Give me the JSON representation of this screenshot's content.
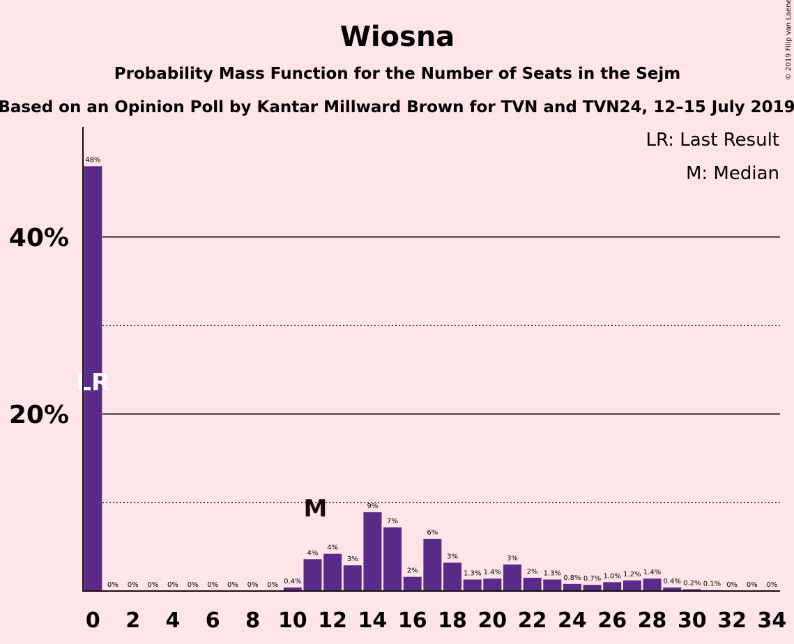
{
  "chart_data": {
    "type": "bar",
    "title": "Wiosna",
    "subtitle": "Probability Mass Function for the Number of Seats in the Sejm",
    "subtitle2": "Based on an Opinion Poll by Kantar Millward Brown for TVN and TVN24, 12–15 July 2019",
    "copyright": "© 2019 Filip van Laenen",
    "legend": [
      "LR: Last Result",
      "M: Median"
    ],
    "legend_placement": "top-right",
    "xlabel": "",
    "ylabel": "",
    "ylim": [
      0,
      52
    ],
    "yticks": [
      {
        "value": 20,
        "label": "20%"
      },
      {
        "value": 40,
        "label": "40%"
      }
    ],
    "gridlines": [
      {
        "value": 10,
        "style": "dotted"
      },
      {
        "value": 20,
        "style": "solid"
      },
      {
        "value": 30,
        "style": "dotted"
      },
      {
        "value": 40,
        "style": "solid"
      }
    ],
    "xticks": [
      0,
      2,
      4,
      6,
      8,
      10,
      12,
      14,
      16,
      18,
      20,
      22,
      24,
      26,
      28,
      30,
      32,
      34
    ],
    "x": [
      0,
      1,
      2,
      3,
      4,
      5,
      6,
      7,
      8,
      9,
      10,
      11,
      12,
      13,
      14,
      15,
      16,
      17,
      18,
      19,
      20,
      21,
      22,
      23,
      24,
      25,
      26,
      27,
      28,
      29,
      30,
      31,
      32,
      33,
      34
    ],
    "values": [
      48,
      0,
      0,
      0,
      0,
      0,
      0,
      0,
      0,
      0,
      0.4,
      3.6,
      4.2,
      2.9,
      8.9,
      7.2,
      1.6,
      5.9,
      3.2,
      1.3,
      1.4,
      3.0,
      1.5,
      1.3,
      0.8,
      0.7,
      1.0,
      1.2,
      1.4,
      0.4,
      0.2,
      0.1,
      0,
      0,
      0
    ],
    "labels": [
      "48%",
      "0%",
      "0%",
      "0%",
      "0%",
      "0%",
      "0%",
      "0%",
      "0%",
      "0%",
      "0.4%",
      "4%",
      "4%",
      "3%",
      "9%",
      "7%",
      "2%",
      "6%",
      "3%",
      "1.3%",
      "1.4%",
      "3%",
      "2%",
      "1.3%",
      "0.8%",
      "0.7%",
      "1.0%",
      "1.2%",
      "1.4%",
      "0.4%",
      "0.2%",
      "0.1%",
      "0%",
      "0%",
      "0%"
    ],
    "last_result": {
      "x": 0,
      "label": "LR"
    },
    "median": {
      "x": 11,
      "label": "M"
    },
    "colors": {
      "bar": "#5a2a88",
      "background": "#ffe4e8",
      "text": "#1a0a10"
    }
  }
}
